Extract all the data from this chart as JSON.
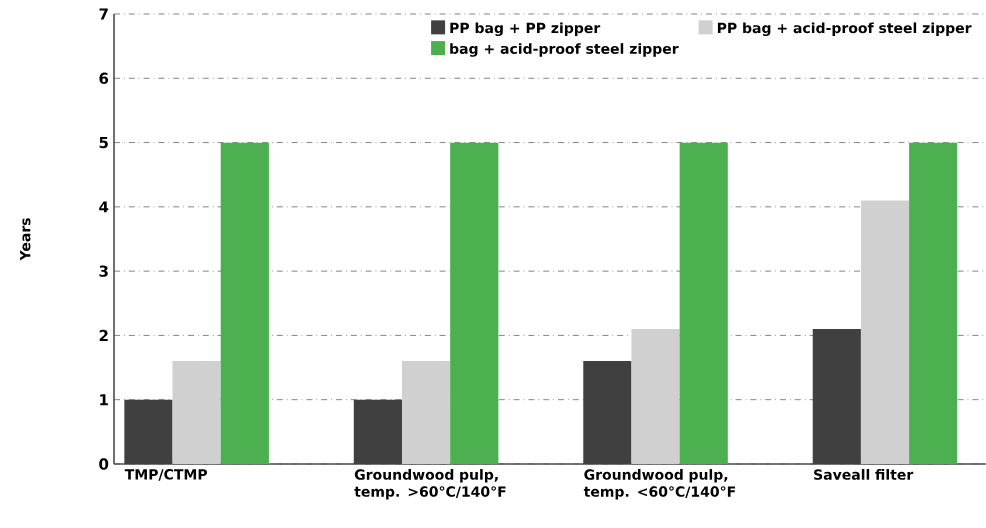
{
  "chart_data": {
    "type": "bar",
    "ylabel": "Years",
    "categories": [
      "TMP/CTMP",
      "Groundwood pulp, temp. >60°C/140°F",
      "Groundwood pulp, temp. <60°C/140°F",
      "Saveall filter"
    ],
    "series": [
      {
        "name": "PP bag + PP zipper",
        "color": "#404040",
        "values": [
          1,
          1,
          1.6,
          2.1
        ]
      },
      {
        "name": "PP bag + acid-proof steel zipper",
        "color": "#d0d0d0",
        "values": [
          1.6,
          1.6,
          2.1,
          4.1
        ]
      },
      {
        "name": "bag + acid-proof steel zipper",
        "color": "#4caf50",
        "values": [
          5,
          5,
          5,
          5
        ]
      }
    ],
    "ylim": [
      0,
      7
    ],
    "yticks": [
      0,
      1,
      2,
      3,
      4,
      5,
      6,
      7
    ],
    "grid": "y",
    "legend": "top right"
  }
}
